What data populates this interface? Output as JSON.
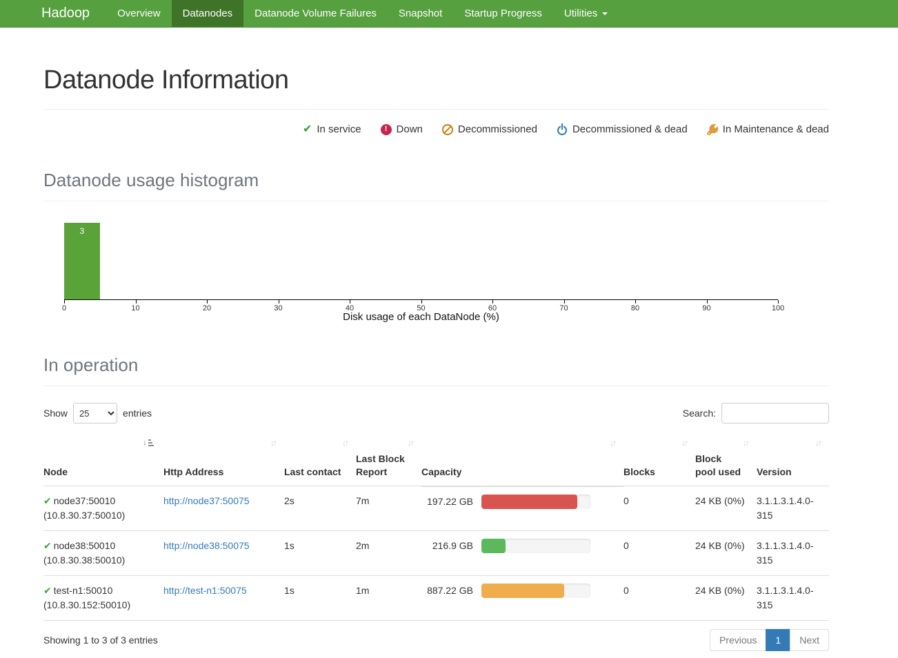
{
  "navbar": {
    "brand": "Hadoop",
    "items": [
      {
        "label": "Overview",
        "active": false,
        "dropdown": false
      },
      {
        "label": "Datanodes",
        "active": true,
        "dropdown": false
      },
      {
        "label": "Datanode Volume Failures",
        "active": false,
        "dropdown": false
      },
      {
        "label": "Snapshot",
        "active": false,
        "dropdown": false
      },
      {
        "label": "Startup Progress",
        "active": false,
        "dropdown": false
      },
      {
        "label": "Utilities",
        "active": false,
        "dropdown": true
      }
    ],
    "bg_color": "#56a03f",
    "active_color": "#3e7328"
  },
  "page": {
    "title": "Datanode Information"
  },
  "legend": {
    "items": [
      {
        "icon": "check-icon",
        "label": "In service",
        "color": "#2ea12c"
      },
      {
        "icon": "down-icon",
        "label": "Down",
        "color": "#c7254e"
      },
      {
        "icon": "decommissioned-icon",
        "label": "Decommissioned",
        "color": "#c87f0a"
      },
      {
        "icon": "power-icon",
        "label": "Decommissioned & dead",
        "color": "#337ab7"
      },
      {
        "icon": "wrench-icon",
        "label": "In Maintenance & dead",
        "color": "#e09a3b"
      }
    ]
  },
  "sections": {
    "histogram": "Datanode usage histogram",
    "operation": "In operation"
  },
  "chart_data": {
    "type": "bar",
    "title": "Datanode usage histogram",
    "xlabel": "Disk usage of each DataNode (%)",
    "ylabel": "",
    "xlim": [
      0,
      100
    ],
    "x_ticks": [
      0,
      10,
      20,
      30,
      40,
      50,
      60,
      70,
      80,
      90,
      100
    ],
    "grid": false,
    "bins": [
      {
        "x0": 0,
        "x1": 5,
        "count": 3
      }
    ],
    "bar_color": "#5aa339",
    "bar_label_color": "#ffffff"
  },
  "controls": {
    "show_label": "Show",
    "page_size": "25",
    "page_size_options": [
      "25"
    ],
    "entries_label": "entries",
    "search_label": "Search:",
    "search_value": ""
  },
  "table": {
    "columns": [
      {
        "label": "Node",
        "sort": "asc"
      },
      {
        "label": "Http Address",
        "sort": "both"
      },
      {
        "label": "Last contact",
        "sort": "both"
      },
      {
        "label": "Last Block Report",
        "sort": "both"
      },
      {
        "label": "Capacity",
        "sort": "both"
      },
      {
        "label": "Blocks",
        "sort": "both"
      },
      {
        "label": "Block pool used",
        "sort": "both"
      },
      {
        "label": "Version",
        "sort": "both"
      }
    ],
    "rows": [
      {
        "node": "node37:50010",
        "ip": "(10.8.30.37:50010)",
        "http": "http://node37:50075",
        "last_contact": "2s",
        "last_block_report": "7m",
        "capacity": "197.22 GB",
        "capacity_pct": 88,
        "capacity_color": "#d9534f",
        "blocks": "0",
        "block_pool_used": "24 KB (0%)",
        "version": "3.1.1.3.1.4.0-315"
      },
      {
        "node": "node38:50010",
        "ip": "(10.8.30.38:50010)",
        "http": "http://node38:50075",
        "last_contact": "1s",
        "last_block_report": "2m",
        "capacity": "216.9 GB",
        "capacity_pct": 22,
        "capacity_color": "#5cb85c",
        "blocks": "0",
        "block_pool_used": "24 KB (0%)",
        "version": "3.1.1.3.1.4.0-315"
      },
      {
        "node": "test-n1:50010",
        "ip": "(10.8.30.152:50010)",
        "http": "http://test-n1:50075",
        "last_contact": "1s",
        "last_block_report": "1m",
        "capacity": "887.22 GB",
        "capacity_pct": 76,
        "capacity_color": "#f0ad4e",
        "blocks": "0",
        "block_pool_used": "24 KB (0%)",
        "version": "3.1.1.3.1.4.0-315"
      }
    ]
  },
  "footer": {
    "summary": "Showing 1 to 3 of 3 entries",
    "pagination": {
      "previous": "Previous",
      "page": "1",
      "next": "Next"
    },
    "active_page_color": "#337ab7"
  }
}
